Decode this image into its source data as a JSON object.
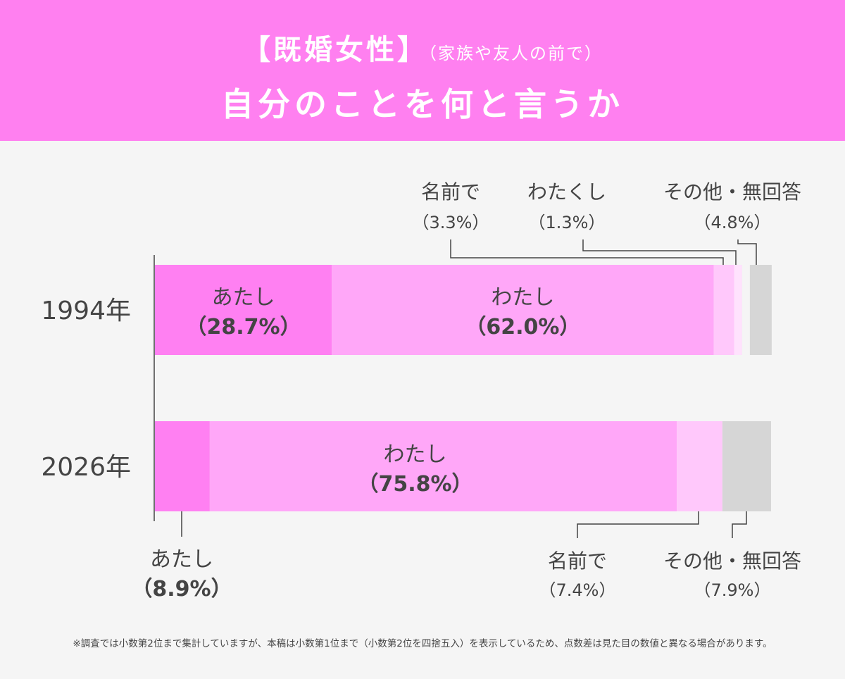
{
  "header": {
    "title_bracket": "【既婚女性】",
    "title_sub": "（家族や友人の前で）",
    "title_line2": "自分のことを何と言うか"
  },
  "colors": {
    "header_bg": "#ff80f0",
    "atashi": "#ff80f2",
    "watashi": "#ffa7f8",
    "namae": "#ffc8fb",
    "watakushi": "#ffe2fd",
    "other": "#d6d6d6",
    "text": "#444444"
  },
  "chart_data": {
    "type": "bar",
    "orientation": "horizontal",
    "stacked": true,
    "unit": "%",
    "xlim": [
      0,
      100
    ],
    "categories": [
      "1994年",
      "2026年"
    ],
    "series": [
      {
        "name": "あたし",
        "key": "atashi",
        "values": [
          28.7,
          8.9
        ]
      },
      {
        "name": "わたし",
        "key": "watashi",
        "values": [
          62.0,
          75.8
        ]
      },
      {
        "name": "名前で",
        "key": "namae",
        "values": [
          3.3,
          7.4
        ]
      },
      {
        "name": "わたくし",
        "key": "watakushi",
        "values": [
          1.3,
          0
        ]
      },
      {
        "name": "その他・無回答",
        "key": "other",
        "values": [
          4.8,
          7.9
        ]
      }
    ],
    "labels": {
      "y1994": {
        "atashi": {
          "name": "あたし",
          "value": "（28.7%）"
        },
        "watashi": {
          "name": "わたし",
          "value": "（62.0%）"
        },
        "namae": {
          "name": "名前で",
          "value": "（3.3%）"
        },
        "watakushi": {
          "name": "わたくし",
          "value": "（1.3%）"
        },
        "other": {
          "name": "その他・無回答",
          "value": "（4.8%）"
        }
      },
      "y2026": {
        "atashi": {
          "name": "あたし",
          "value": "（8.9%）"
        },
        "watashi": {
          "name": "わたし",
          "value": "（75.8%）"
        },
        "namae": {
          "name": "名前で",
          "value": "（7.4%）"
        },
        "other": {
          "name": "その他・無回答",
          "value": "（7.9%）"
        }
      }
    }
  },
  "footnote": "※調査では小数第2位まで集計していますが、本稿は小数第1位まで（小数第2位を四捨五入）を表示しているため、点数差は見た目の数値と異なる場合があります。"
}
